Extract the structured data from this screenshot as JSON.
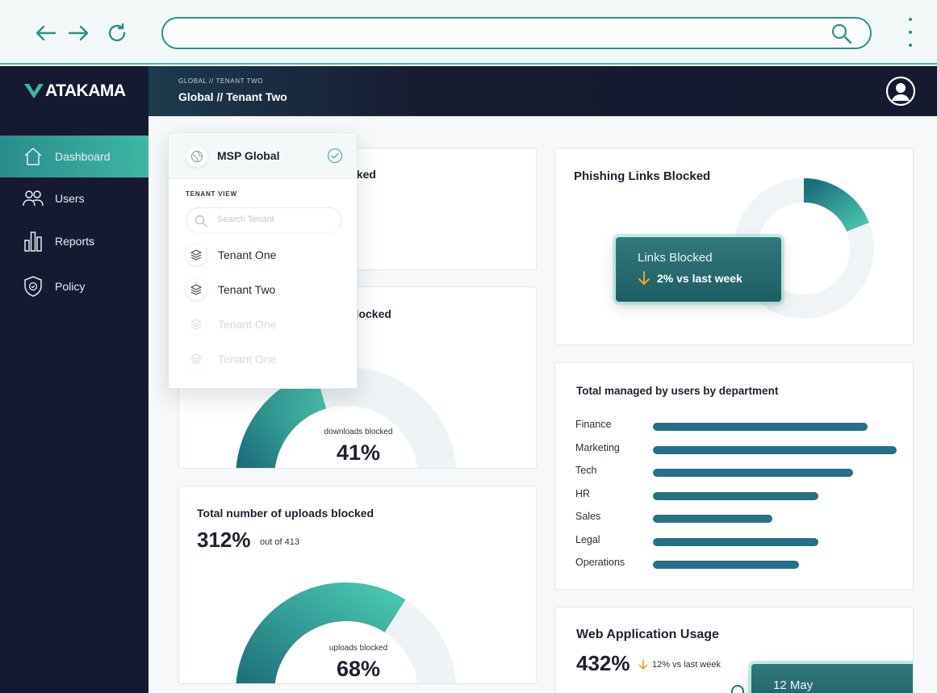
{
  "browser": {
    "url_value": "",
    "icons": [
      "back-arrow-icon",
      "forward-arrow-icon",
      "reload-icon",
      "search-icon",
      "kebab-menu-icon"
    ]
  },
  "brand": {
    "name": "ATAKAMA",
    "accent": "#3fb6a3",
    "navy": "#161a31",
    "teal": "#256f87"
  },
  "sidebar": {
    "items": [
      {
        "label": "Dashboard",
        "icon": "home-icon",
        "active": true
      },
      {
        "label": "Users",
        "icon": "users-icon",
        "active": false
      },
      {
        "label": "Reports",
        "icon": "bar-chart-icon",
        "active": false
      },
      {
        "label": "Policy",
        "icon": "shield-icon",
        "active": false
      }
    ]
  },
  "header": {
    "breadcrumb_small": "GLOBAL // TENANT TWO",
    "breadcrumb_title": "Global // Tenant Two"
  },
  "dropdown": {
    "title": "MSP Global",
    "section_label": "TENANT VIEW",
    "search_placeholder": "Search Tenant",
    "items": [
      {
        "label": "Tenant One",
        "faded": false
      },
      {
        "label": "Tenant Two",
        "faded": false
      },
      {
        "label": "Tenant One",
        "faded": true
      },
      {
        "label": "Tenant One",
        "faded": true
      }
    ]
  },
  "cards": {
    "card1": {
      "title_visible": "cked"
    },
    "downloads": {
      "title_visible": "downloads blocked",
      "gauge_label": "downloads blocked",
      "gauge_value": "41%",
      "gauge_fraction": 0.41
    },
    "uploads": {
      "title": "Total number of uploads blocked",
      "value": "312%",
      "out_of": "out of 413",
      "gauge_label": "uploads blocked",
      "gauge_value": "68%",
      "gauge_fraction": 0.68
    },
    "phishing": {
      "title": "Phishing Links Blocked",
      "tip_title": "Links Blocked",
      "tip_change": "2% vs last week",
      "donut_fraction": 0.19
    },
    "departments": {
      "title": "Total managed by users by department"
    },
    "web_usage": {
      "title": "Web Application Usage",
      "value": "432%",
      "change": "12% vs last week",
      "tip_date": "12 May"
    }
  },
  "chart_data": {
    "type": "bar",
    "orientation": "horizontal",
    "title": "Total managed by users by department",
    "categories": [
      "Finance",
      "Marketing",
      "Tech",
      "HR",
      "Sales",
      "Legal",
      "Operations"
    ],
    "values": [
      88,
      100,
      82,
      68,
      49,
      68,
      60
    ],
    "xlim": [
      0,
      100
    ],
    "grid": false,
    "color": "#256f87"
  }
}
